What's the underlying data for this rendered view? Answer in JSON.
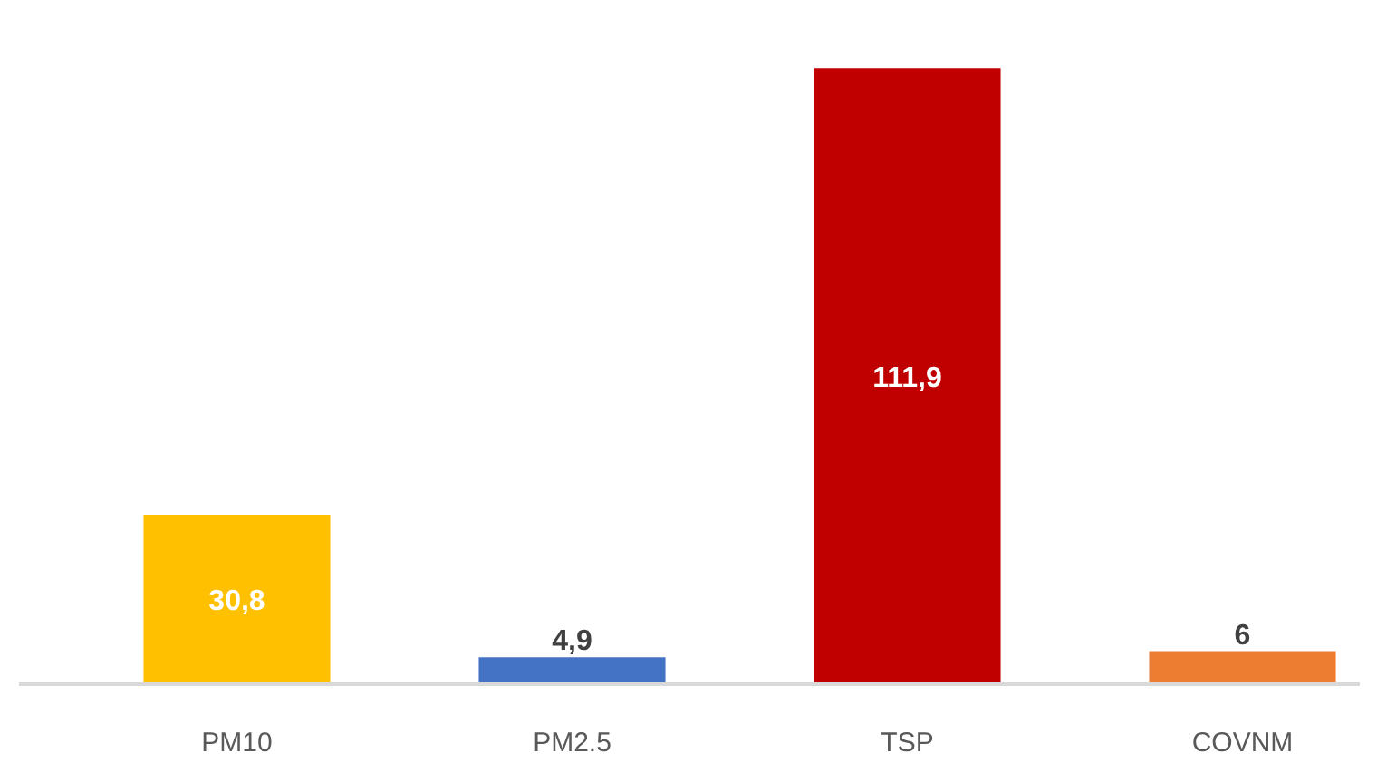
{
  "chart_data": {
    "type": "bar",
    "categories": [
      "PM10",
      "PM2.5",
      "TSP",
      "COVNM"
    ],
    "values": [
      30.8,
      4.9,
      111.9,
      6
    ],
    "colors": [
      "#ffc000",
      "#4472c4",
      "#c00000",
      "#ed7d31"
    ],
    "value_labels": [
      "30,8",
      "4,9",
      "111,9",
      "6"
    ]
  }
}
